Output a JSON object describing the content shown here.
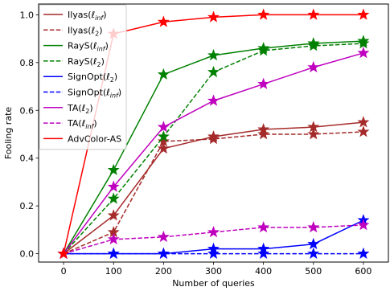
{
  "chart_data": {
    "type": "line",
    "xlabel": "Number of queries",
    "ylabel": "Fooling rate",
    "x": [
      0,
      100,
      200,
      300,
      400,
      500,
      600
    ],
    "xticks": [
      "0",
      "100",
      "200",
      "300",
      "400",
      "500",
      "600"
    ],
    "yticks": [
      "0.0",
      "0.2",
      "0.4",
      "0.6",
      "0.8",
      "1.0"
    ],
    "xlim": [
      -50,
      650
    ],
    "ylim": [
      -0.035,
      1.045
    ],
    "legend_position": "top-left",
    "series": [
      {
        "name": "Ilyas(ℓinf)",
        "label_base": "Ilyas(",
        "label_sub": "inf",
        "color": "#a52a2a",
        "dash": "solid",
        "values": [
          0.0,
          0.16,
          0.44,
          0.49,
          0.52,
          0.53,
          0.55
        ]
      },
      {
        "name": "Ilyas(ℓ2)",
        "label_base": "Ilyas(",
        "label_sub": "2",
        "color": "#a52a2a",
        "dash": "dashed",
        "values": [
          0.0,
          0.09,
          0.47,
          0.48,
          0.5,
          0.5,
          0.51
        ]
      },
      {
        "name": "RayS(ℓinf)",
        "label_base": "RayS(",
        "label_sub": "inf",
        "color": "#008000",
        "dash": "solid",
        "values": [
          0.0,
          0.35,
          0.75,
          0.83,
          0.86,
          0.88,
          0.89
        ]
      },
      {
        "name": "RayS(ℓ2)",
        "label_base": "RayS(",
        "label_sub": "2",
        "color": "#008000",
        "dash": "dashed",
        "values": [
          0.0,
          0.23,
          0.49,
          0.76,
          0.85,
          0.87,
          0.88
        ]
      },
      {
        "name": "SignOpt(ℓ2)",
        "label_base": "SignOpt(",
        "label_sub": "2",
        "color": "#0000ff",
        "dash": "solid",
        "values": [
          0.0,
          0.0,
          0.0,
          0.02,
          0.02,
          0.04,
          0.14
        ]
      },
      {
        "name": "SignOpt(ℓinf)",
        "label_base": "SignOpt(",
        "label_sub": "inf",
        "color": "#0000ff",
        "dash": "dashed",
        "values": [
          0.0,
          0.0,
          0.0,
          0.0,
          0.0,
          0.0,
          0.0
        ]
      },
      {
        "name": "TA(ℓ2)",
        "label_base": "TA(",
        "label_sub": "2",
        "color": "#bf00bf",
        "dash": "solid",
        "values": [
          0.0,
          0.28,
          0.53,
          0.64,
          0.71,
          0.78,
          0.84
        ]
      },
      {
        "name": "TA(ℓinf)",
        "label_base": "TA(",
        "label_sub": "inf",
        "color": "#bf00bf",
        "dash": "dashed",
        "values": [
          0.0,
          0.06,
          0.07,
          0.09,
          0.11,
          0.11,
          0.12
        ]
      },
      {
        "name": "AdvColor-AS",
        "label_base": "AdvColor-AS",
        "label_sub": "",
        "color": "#ff0000",
        "dash": "solid",
        "values": [
          0.0,
          0.92,
          0.97,
          0.99,
          1.0,
          1.0,
          1.0
        ]
      }
    ]
  }
}
